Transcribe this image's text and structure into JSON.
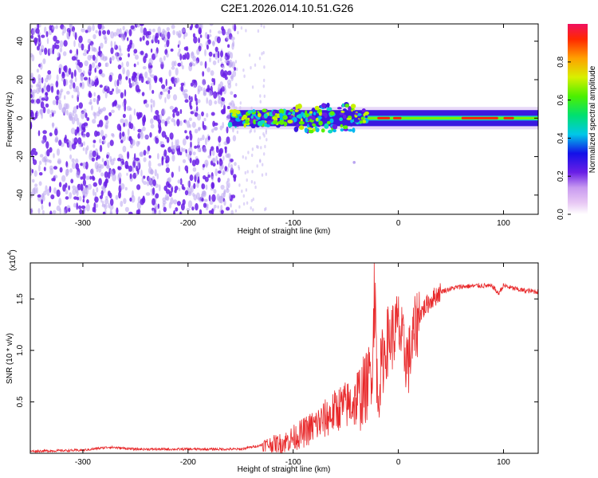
{
  "title": "C2E1.2026.014.10.51.G26",
  "colors": {
    "snr_line": "#e8282a",
    "frame": "#000000",
    "scatter_dots": "#6a1fe6",
    "faint_dots": "#b9a4f0"
  },
  "chart_data": [
    {
      "name": "spectrogram",
      "type": "heatmap",
      "xlabel": "Height of straight line (km)",
      "ylabel": "Frequency (Hz)",
      "xlim": [
        -350,
        133
      ],
      "ylim": [
        -50,
        49
      ],
      "xticks": [
        -300,
        -200,
        -100,
        0,
        100
      ],
      "xtick_labels": [
        "-300",
        "-200",
        "-100",
        "0",
        "100"
      ],
      "yticks": [
        -40,
        -20,
        0,
        20,
        40
      ],
      "ytick_labels": [
        "-40",
        "-20",
        "0",
        "20",
        "40"
      ],
      "colorbar": {
        "label": "Normalized spectral amplitude",
        "range": [
          0,
          1
        ],
        "ticks": [
          0,
          0.2,
          0.4,
          0.6,
          0.8
        ],
        "tick_labels": [
          "0.0",
          "0.2",
          "0.4",
          "0.6",
          "0.8"
        ],
        "colormap": "rainbow (magenta-blue-cyan-green-yellow-red)"
      },
      "features": {
        "noise_region_x": [
          -350,
          -155
        ],
        "signal_band_center_hz": 0,
        "signal_band_half_width_hz": 5,
        "signal_band_start_x": -160
      }
    },
    {
      "name": "snr",
      "type": "line",
      "xlabel": "Height of straight line (km)",
      "ylabel": "SNR (10 * v/v)",
      "yscale_label": "(x10",
      "yscale_exp": "4",
      "xlim": [
        -350,
        133
      ],
      "ylim": [
        0,
        1.85
      ],
      "xticks": [
        -300,
        -200,
        -100,
        0,
        100
      ],
      "xtick_labels": [
        "-300",
        "-200",
        "-100",
        "0",
        "100"
      ],
      "yticks": [
        0.5,
        1.0,
        1.5
      ],
      "ytick_labels": [
        "0.5",
        "1.0",
        "1.5"
      ],
      "series": [
        {
          "name": "SNR",
          "x": [
            -350,
            -300,
            -275,
            -250,
            -200,
            -150,
            -130,
            -110,
            -90,
            -70,
            -55,
            -40,
            -30,
            -25,
            -22,
            -20,
            -15,
            -10,
            -5,
            0,
            5,
            10,
            15,
            20,
            30,
            40,
            50,
            60,
            80,
            90,
            95,
            100,
            110,
            120,
            133
          ],
          "values": [
            0.02,
            0.03,
            0.06,
            0.04,
            0.04,
            0.04,
            0.08,
            0.1,
            0.2,
            0.33,
            0.45,
            0.5,
            0.65,
            0.85,
            1.6,
            0.55,
            0.9,
            1.1,
            1.15,
            1.25,
            1.0,
            0.9,
            1.15,
            1.35,
            1.48,
            1.57,
            1.6,
            1.62,
            1.63,
            1.62,
            1.55,
            1.63,
            1.6,
            1.58,
            1.57
          ]
        }
      ]
    }
  ]
}
